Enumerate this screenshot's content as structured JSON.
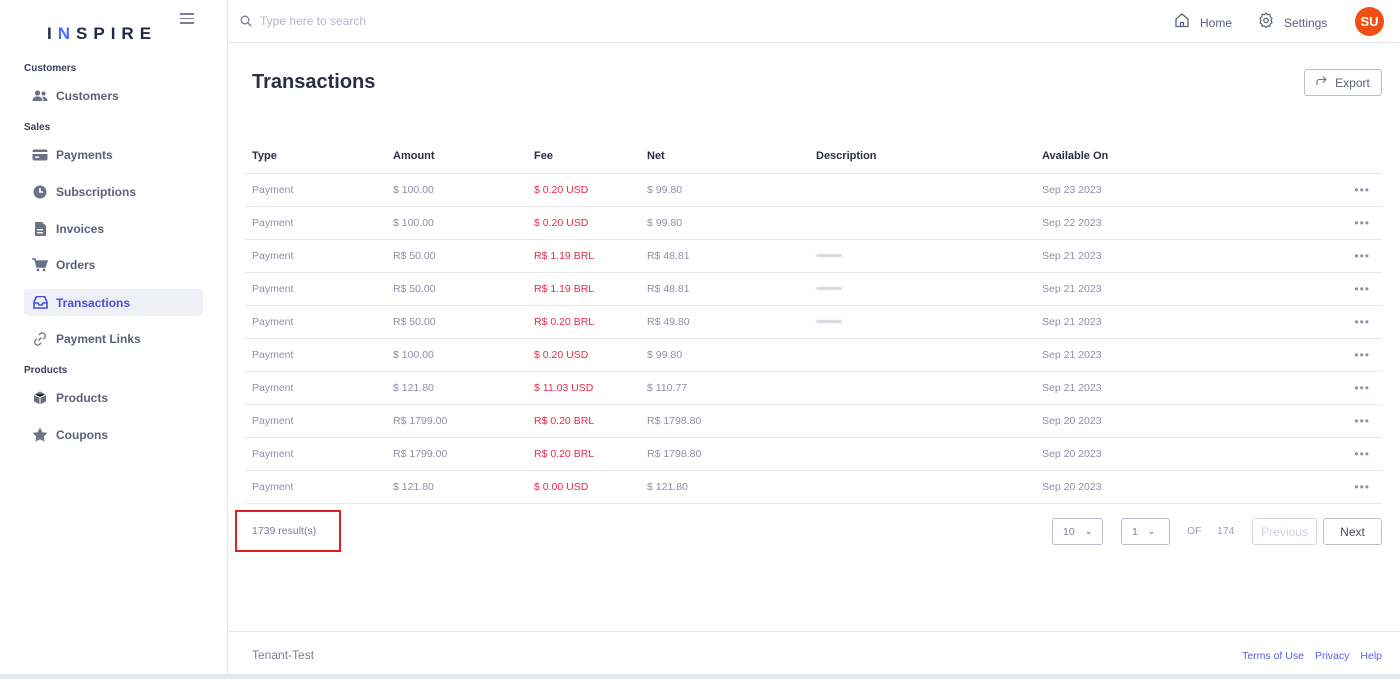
{
  "brand": {
    "prefix": "I",
    "accent": "N",
    "suffix": "SPIRE"
  },
  "search": {
    "placeholder": "Type here to search"
  },
  "topnav": {
    "home_label": "Home",
    "settings_label": "Settings",
    "avatar_initials": "SU"
  },
  "sidebar": {
    "sections": [
      "Customers",
      "Sales",
      "Products"
    ],
    "items": [
      {
        "label": "Customers",
        "icon": "users-icon"
      },
      {
        "label": "Payments",
        "icon": "credit-card-icon"
      },
      {
        "label": "Subscriptions",
        "icon": "clock-icon"
      },
      {
        "label": "Invoices",
        "icon": "document-icon"
      },
      {
        "label": "Orders",
        "icon": "cart-icon"
      },
      {
        "label": "Transactions",
        "icon": "inbox-icon",
        "active": true
      },
      {
        "label": "Payment Links",
        "icon": "link-icon"
      },
      {
        "label": "Products",
        "icon": "box-icon"
      },
      {
        "label": "Coupons",
        "icon": "star-icon"
      }
    ]
  },
  "main": {
    "title": "Transactions",
    "export_label": "Export",
    "columns": [
      "Type",
      "Amount",
      "Fee",
      "Net",
      "Description",
      "Available On"
    ],
    "rows": [
      {
        "type": "Payment",
        "amount": "$ 100.00",
        "fee": "$ 0.20 USD",
        "net": "$ 99.80",
        "desc_redacted": false,
        "available_on": "Sep 23 2023"
      },
      {
        "type": "Payment",
        "amount": "$ 100.00",
        "fee": "$ 0.20 USD",
        "net": "$ 99.80",
        "desc_redacted": false,
        "available_on": "Sep 22 2023"
      },
      {
        "type": "Payment",
        "amount": "R$ 50.00",
        "fee": "R$ 1.19 BRL",
        "net": "R$ 48.81",
        "desc_redacted": true,
        "available_on": "Sep 21 2023"
      },
      {
        "type": "Payment",
        "amount": "R$ 50.00",
        "fee": "R$ 1.19 BRL",
        "net": "R$ 48.81",
        "desc_redacted": true,
        "available_on": "Sep 21 2023"
      },
      {
        "type": "Payment",
        "amount": "R$ 50.00",
        "fee": "R$ 0.20 BRL",
        "net": "R$ 49.80",
        "desc_redacted": true,
        "available_on": "Sep 21 2023"
      },
      {
        "type": "Payment",
        "amount": "$ 100.00",
        "fee": "$ 0.20 USD",
        "net": "$ 99.80",
        "desc_redacted": false,
        "available_on": "Sep 21 2023"
      },
      {
        "type": "Payment",
        "amount": "$ 121.80",
        "fee": "$ 11.03 USD",
        "net": "$ 110.77",
        "desc_redacted": false,
        "available_on": "Sep 21 2023"
      },
      {
        "type": "Payment",
        "amount": "R$ 1799.00",
        "fee": "R$ 0.20 BRL",
        "net": "R$ 1798.80",
        "desc_redacted": false,
        "available_on": "Sep 20 2023"
      },
      {
        "type": "Payment",
        "amount": "R$ 1799.00",
        "fee": "R$ 0.20 BRL",
        "net": "R$ 1798.80",
        "desc_redacted": false,
        "available_on": "Sep 20 2023"
      },
      {
        "type": "Payment",
        "amount": "$ 121.80",
        "fee": "$ 0.00 USD",
        "net": "$ 121.80",
        "desc_redacted": false,
        "available_on": "Sep 20 2023"
      }
    ],
    "row_menu_label": "•••",
    "results_text": "1739 result(s)",
    "pagination": {
      "page_size": "10",
      "page": "1",
      "of_label": "OF",
      "total_pages": "174",
      "previous_label": "Previous",
      "next_label": "Next"
    }
  },
  "footer": {
    "tenant": "Tenant-Test",
    "links": [
      "Terms of Use",
      "Privacy",
      "Help"
    ]
  },
  "colors": {
    "accent": "#4a4fd8",
    "fee": "#e8294c",
    "avatar": "#f04e12",
    "highlight": "#e02020"
  }
}
